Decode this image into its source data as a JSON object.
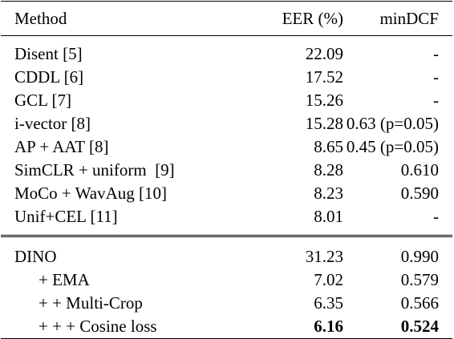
{
  "table": {
    "headers": {
      "method": "Method",
      "eer": "EER (%)",
      "mindcf": "minDCF"
    },
    "baselines": [
      {
        "method": "Disent [5]",
        "eer": "22.09",
        "mindcf": "-"
      },
      {
        "method": "CDDL [6]",
        "eer": "17.52",
        "mindcf": "-"
      },
      {
        "method": "GCL [7]",
        "eer": "15.26",
        "mindcf": "-"
      },
      {
        "method": "i-vector [8]",
        "eer": "15.28",
        "mindcf": "0.63 (p=0.05)"
      },
      {
        "method": "AP + AAT [8]",
        "eer": "8.65",
        "mindcf": "0.45 (p=0.05)"
      },
      {
        "method": "SimCLR + uniform  [9]",
        "eer": "8.28",
        "mindcf": "0.610"
      },
      {
        "method": "MoCo + WavAug [10]",
        "eer": "8.23",
        "mindcf": "0.590"
      },
      {
        "method": "Unif+CEL [11]",
        "eer": "8.01",
        "mindcf": "-"
      }
    ],
    "ours": [
      {
        "method": "DINO",
        "eer": "31.23",
        "mindcf": "0.990"
      },
      {
        "method": "+ EMA",
        "eer": "7.02",
        "mindcf": "0.579"
      },
      {
        "method": "+ + Multi-Crop",
        "eer": "6.35",
        "mindcf": "0.566"
      },
      {
        "method": "+ + + Cosine loss",
        "eer": "6.16",
        "mindcf": "0.524"
      }
    ]
  }
}
